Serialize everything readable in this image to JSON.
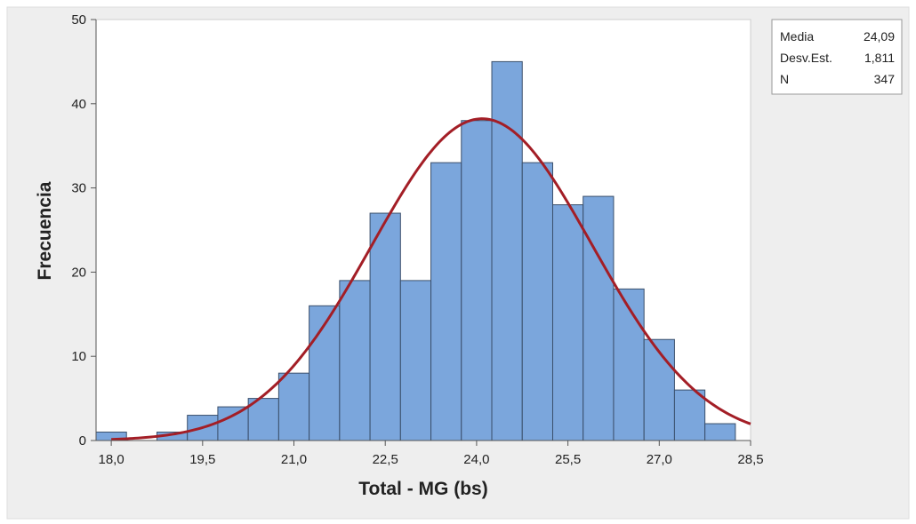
{
  "chart_data": {
    "type": "bar",
    "subtype": "histogram",
    "title": "",
    "xlabel": "Total - MG (bs)",
    "ylabel": "Frecuencia",
    "xlim": [
      17.75,
      28.5
    ],
    "ylim": [
      0,
      50
    ],
    "x_ticks": [
      18.0,
      19.5,
      21.0,
      22.5,
      24.0,
      25.5,
      27.0,
      28.5
    ],
    "x_tick_labels": [
      "18,0",
      "19,5",
      "21,0",
      "22,5",
      "24,0",
      "25,5",
      "27,0",
      "28,5"
    ],
    "y_ticks": [
      0,
      10,
      20,
      30,
      40,
      50
    ],
    "y_tick_labels": [
      "0",
      "10",
      "20",
      "30",
      "40",
      "50"
    ],
    "bin_width": 0.5,
    "bin_centers": [
      18.0,
      18.5,
      19.0,
      19.5,
      20.0,
      20.5,
      21.0,
      21.5,
      22.0,
      22.5,
      23.0,
      23.5,
      24.0,
      24.5,
      25.0,
      25.5,
      26.0,
      26.5,
      27.0,
      27.5,
      28.0
    ],
    "values": [
      1,
      0,
      1,
      3,
      4,
      5,
      8,
      16,
      19,
      27,
      19,
      33,
      38,
      45,
      33,
      28,
      29,
      18,
      12,
      6,
      2
    ],
    "bar_color": "#7ba6dc",
    "bar_edge_color": "#3a4f6b",
    "fit_curve": {
      "type": "normal",
      "mean": 24.09,
      "std": 1.811,
      "n": 347,
      "color": "#a31e26"
    },
    "grid": false,
    "legend": {
      "placement": "top-right",
      "rows": [
        {
          "label": "Media",
          "value": "24,09"
        },
        {
          "label": "Desv.Est.",
          "value": "1,811"
        },
        {
          "label": "N",
          "value": "347"
        }
      ]
    }
  },
  "colors": {
    "outer_background": "#eeeeee",
    "plot_background": "#ffffff",
    "axis_color": "#555555"
  }
}
